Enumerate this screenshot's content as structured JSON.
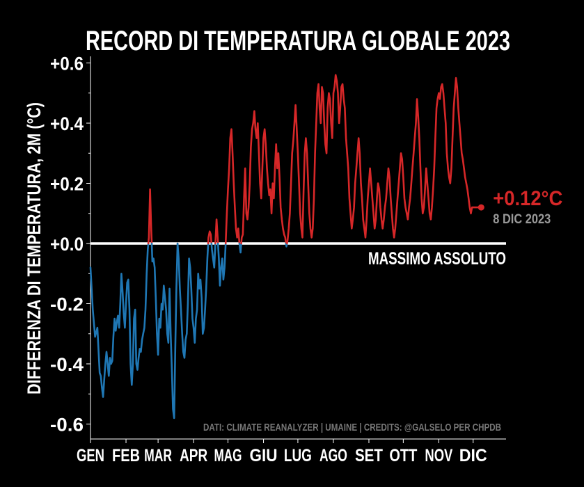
{
  "chart_data": {
    "type": "line",
    "title": "RECORD DI TEMPERATURA GLOBALE 2023",
    "ylabel": "DIFFERENZA DI TEMPERATURA, 2M (°C)",
    "xlabel": "",
    "ylim": [
      -0.65,
      0.62
    ],
    "xlim": [
      0,
      365
    ],
    "yticks": [
      {
        "value": 0.6,
        "label": "+0.6"
      },
      {
        "value": 0.4,
        "label": "+0.4"
      },
      {
        "value": 0.2,
        "label": "+0.2"
      },
      {
        "value": 0.0,
        "label": "+0.0"
      },
      {
        "value": -0.2,
        "label": "-0.2"
      },
      {
        "value": -0.4,
        "label": "-0.4"
      },
      {
        "value": -0.6,
        "label": "-0.6"
      }
    ],
    "xticks": [
      {
        "day": 0,
        "label": "GEN"
      },
      {
        "day": 31,
        "label": "FEB"
      },
      {
        "day": 59,
        "label": "MAR"
      },
      {
        "day": 90,
        "label": "APR"
      },
      {
        "day": 120,
        "label": "MAG"
      },
      {
        "day": 151,
        "label": "GIU"
      },
      {
        "day": 181,
        "label": "LUG"
      },
      {
        "day": 212,
        "label": "AGO"
      },
      {
        "day": 243,
        "label": "SET"
      },
      {
        "day": 273,
        "label": "OTT"
      },
      {
        "day": 304,
        "label": "NOV"
      },
      {
        "day": 334,
        "label": "DIC"
      }
    ],
    "baseline": {
      "value": 0.0,
      "label": "MASSIMO ASSOLUTO"
    },
    "colors": {
      "above": "#d62728",
      "below": "#1f77b4",
      "baseline": "#ffffff",
      "background": "#000000"
    },
    "series": {
      "x": [
        0,
        2,
        4,
        6,
        8,
        9,
        10,
        11,
        12,
        13,
        14,
        15,
        16,
        17,
        18,
        19,
        20,
        21,
        22,
        23,
        24,
        25,
        26,
        27,
        28,
        29,
        30,
        31,
        32,
        33,
        34,
        35,
        36,
        37,
        38,
        39,
        40,
        41,
        42,
        43,
        44,
        45,
        46,
        47,
        48,
        49,
        50,
        51,
        52,
        53,
        54,
        55,
        56,
        57,
        58,
        59,
        60,
        61,
        62,
        63,
        64,
        65,
        66,
        67,
        68,
        69,
        70,
        71,
        72,
        73,
        74,
        75,
        76,
        77,
        78,
        79,
        80,
        81,
        82,
        83,
        84,
        85,
        86,
        87,
        88,
        89,
        90,
        91,
        92,
        93,
        94,
        95,
        96,
        97,
        98,
        99,
        100,
        101,
        102,
        103,
        104,
        105,
        106,
        107,
        108,
        109,
        110,
        111,
        112,
        113,
        114,
        115,
        116,
        117,
        118,
        119,
        120,
        121,
        122,
        123,
        124,
        125,
        126,
        127,
        128,
        129,
        130,
        131,
        132,
        133,
        134,
        135,
        136,
        137,
        138,
        139,
        140,
        141,
        142,
        143,
        144,
        145,
        146,
        147,
        148,
        149,
        150,
        151,
        152,
        153,
        154,
        155,
        156,
        157,
        158,
        159,
        160,
        161,
        162,
        163,
        164,
        165,
        166,
        167,
        168,
        169,
        170,
        171,
        172,
        173,
        174,
        175,
        176,
        177,
        178,
        179,
        180,
        181,
        182,
        183,
        184,
        185,
        186,
        187,
        188,
        189,
        190,
        191,
        192,
        193,
        194,
        195,
        196,
        197,
        198,
        199,
        200,
        201,
        202,
        203,
        204,
        205,
        206,
        207,
        208,
        209,
        210,
        211,
        212,
        213,
        214,
        215,
        216,
        217,
        218,
        219,
        220,
        221,
        222,
        223,
        224,
        225,
        226,
        227,
        228,
        229,
        230,
        231,
        232,
        233,
        234,
        235,
        236,
        237,
        238,
        239,
        240,
        241,
        242,
        243,
        244,
        245,
        246,
        247,
        248,
        249,
        250,
        251,
        252,
        253,
        254,
        255,
        256,
        257,
        258,
        259,
        260,
        261,
        262,
        263,
        264,
        265,
        266,
        267,
        268,
        269,
        270,
        271,
        272,
        273,
        274,
        275,
        276,
        277,
        278,
        279,
        280,
        281,
        282,
        283,
        284,
        285,
        286,
        287,
        288,
        289,
        290,
        291,
        292,
        293,
        294,
        295,
        296,
        297,
        298,
        299,
        300,
        301,
        302,
        303,
        304,
        305,
        306,
        307,
        308,
        309,
        310,
        311,
        312,
        313,
        314,
        315,
        316,
        317,
        318,
        319,
        320,
        321,
        322,
        323,
        324,
        325,
        326,
        327,
        328,
        329,
        330,
        331,
        332,
        333,
        334,
        335,
        336,
        337,
        338,
        339,
        340,
        341
      ],
      "y": [
        -0.08,
        -0.22,
        -0.31,
        -0.28,
        -0.43,
        -0.44,
        -0.48,
        -0.51,
        -0.45,
        -0.4,
        -0.36,
        -0.4,
        -0.44,
        -0.38,
        -0.4,
        -0.39,
        -0.31,
        -0.25,
        -0.29,
        -0.26,
        -0.24,
        -0.28,
        -0.2,
        -0.1,
        -0.16,
        -0.23,
        -0.28,
        -0.2,
        -0.13,
        -0.12,
        -0.22,
        -0.4,
        -0.47,
        -0.4,
        -0.25,
        -0.22,
        -0.4,
        -0.42,
        -0.38,
        -0.35,
        -0.36,
        -0.32,
        -0.3,
        -0.28,
        -0.22,
        -0.1,
        -0.02,
        0.02,
        0.18,
        0.05,
        -0.06,
        -0.05,
        -0.08,
        -0.18,
        -0.3,
        -0.37,
        -0.25,
        -0.28,
        -0.2,
        -0.22,
        -0.14,
        -0.18,
        -0.22,
        -0.3,
        -0.33,
        -0.15,
        -0.3,
        -0.42,
        -0.55,
        -0.58,
        -0.35,
        -0.15,
        0.0,
        -0.05,
        -0.15,
        -0.22,
        -0.3,
        -0.36,
        -0.38,
        -0.32,
        -0.3,
        -0.2,
        -0.05,
        -0.08,
        -0.15,
        -0.25,
        -0.28,
        -0.33,
        -0.25,
        -0.22,
        -0.1,
        -0.15,
        -0.12,
        -0.18,
        -0.3,
        -0.28,
        -0.22,
        -0.15,
        -0.05,
        0.02,
        0.04,
        0.03,
        -0.02,
        -0.05,
        -0.08,
        0.0,
        0.08,
        0.02,
        -0.05,
        -0.14,
        -0.08,
        -0.05,
        -0.12,
        -0.08,
        0.0,
        0.1,
        0.18,
        0.25,
        0.35,
        0.38,
        0.3,
        0.2,
        0.12,
        0.05,
        0.02,
        0.05,
        0.0,
        -0.03,
        0.02,
        0.03,
        0.15,
        0.25,
        0.1,
        0.08,
        0.12,
        0.2,
        0.32,
        0.38,
        0.4,
        0.44,
        0.38,
        0.35,
        0.4,
        0.3,
        0.2,
        0.15,
        0.25,
        0.35,
        0.38,
        0.33,
        0.25,
        0.2,
        0.16,
        0.18,
        0.1,
        0.2,
        0.15,
        0.25,
        0.33,
        0.25,
        0.3,
        0.22,
        0.12,
        0.08,
        0.05,
        0.03,
        0.02,
        -0.01,
        0.01,
        0.05,
        0.1,
        0.2,
        0.3,
        0.34,
        0.4,
        0.46,
        0.38,
        0.3,
        0.2,
        0.1,
        0.05,
        0.02,
        0.18,
        0.3,
        0.35,
        0.3,
        0.2,
        0.1,
        0.05,
        0.02,
        0.05,
        0.15,
        0.3,
        0.4,
        0.5,
        0.53,
        0.45,
        0.4,
        0.52,
        0.5,
        0.4,
        0.33,
        0.3,
        0.45,
        0.5,
        0.48,
        0.4,
        0.35,
        0.5,
        0.52,
        0.56,
        0.54,
        0.5,
        0.4,
        0.45,
        0.52,
        0.53,
        0.48,
        0.45,
        0.35,
        0.3,
        0.25,
        0.15,
        0.1,
        0.05,
        0.08,
        0.12,
        0.2,
        0.25,
        0.3,
        0.35,
        0.3,
        0.2,
        0.15,
        0.08,
        0.05,
        0.02,
        0.08,
        0.15,
        0.2,
        0.25,
        0.2,
        0.15,
        0.1,
        0.05,
        0.08,
        0.15,
        0.2,
        0.18,
        0.12,
        0.08,
        0.05,
        0.08,
        0.12,
        0.15,
        0.2,
        0.25,
        0.22,
        0.15,
        0.1,
        0.05,
        0.02,
        0.05,
        0.1,
        0.15,
        0.2,
        0.25,
        0.3,
        0.28,
        0.22,
        0.15,
        0.12,
        0.1,
        0.08,
        0.12,
        0.15,
        0.2,
        0.25,
        0.3,
        0.35,
        0.4,
        0.48,
        0.42,
        0.35,
        0.25,
        0.15,
        0.1,
        0.12,
        0.18,
        0.25,
        0.2,
        0.15,
        0.1,
        0.08,
        0.12,
        0.18,
        0.25,
        0.35,
        0.45,
        0.48,
        0.5,
        0.48,
        0.52,
        0.53,
        0.5,
        0.45,
        0.4,
        0.3,
        0.25,
        0.22,
        0.2,
        0.25,
        0.35,
        0.45,
        0.5,
        0.55,
        0.52,
        0.45,
        0.4,
        0.35,
        0.3,
        0.28,
        0.25,
        0.22,
        0.2,
        0.18,
        0.15,
        0.12,
        0.1,
        0.12,
        0.12,
        0.12,
        0.12,
        0.12,
        0.12,
        0.12,
        0.12,
        0.12
      ]
    },
    "endpoint": {
      "day": 341,
      "value": 0.12,
      "label": "+0.12°C",
      "date": "8 DIC 2023"
    },
    "credits": "DATI: CLIMATE REANALYZER | UMAINE | CREDITS: @GALSELO PER CHPDB"
  }
}
